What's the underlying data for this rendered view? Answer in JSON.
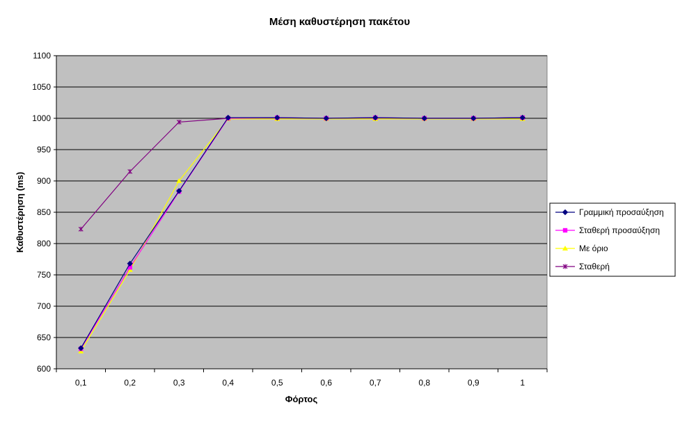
{
  "chart_data": {
    "type": "line",
    "title": "Μέση καθυστέρηση πακέτου",
    "xlabel": "Φόρτος",
    "ylabel": "Καθυστέρηση (ms)",
    "categories": [
      "0,1",
      "0,2",
      "0,3",
      "0,4",
      "0,5",
      "0,6",
      "0,7",
      "0,8",
      "0,9",
      "1"
    ],
    "ylim": [
      600,
      1100
    ],
    "yticks": [
      600,
      650,
      700,
      750,
      800,
      850,
      900,
      950,
      1000,
      1050,
      1100
    ],
    "grid": "horizontal",
    "plot_background": "#c0c0c0",
    "legend_position": "right",
    "series": [
      {
        "name": "Γραμμική προσαύξηση",
        "color": "#000080",
        "marker": "diamond",
        "values": [
          633,
          768,
          884,
          1001,
          1001,
          1000,
          1001,
          1000,
          1000,
          1001
        ]
      },
      {
        "name": "Σταθερή προσαύξηση",
        "color": "#ff00ff",
        "marker": "square",
        "values": [
          632,
          762,
          883,
          1000,
          1001,
          1000,
          1001,
          1000,
          1000,
          1001
        ]
      },
      {
        "name": "Με όριο",
        "color": "#ffff00",
        "marker": "triangle",
        "values": [
          628,
          758,
          900,
          999,
          999,
          999,
          999,
          999,
          999,
          999
        ]
      },
      {
        "name": "Σταθερή",
        "color": "#800080",
        "marker": "star",
        "values": [
          823,
          915,
          994,
          1000,
          1000,
          1000,
          1000,
          1000,
          1000,
          1001
        ]
      }
    ]
  }
}
